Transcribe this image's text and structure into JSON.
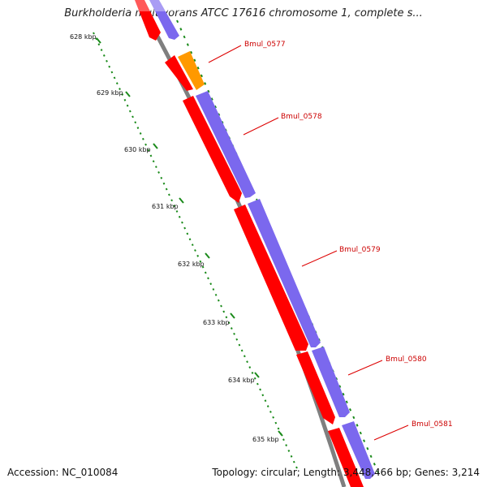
{
  "header": {
    "title": "Burkholderia multivorans ATCC 17616 chromosome 1, complete s..."
  },
  "footer": {
    "accession": "Accession: NC_010084",
    "summary": "Topology: circular; Length: 3,448,466 bp; Genes: 3,214"
  },
  "map": {
    "ticks": [
      {
        "label": "628 kbp"
      },
      {
        "label": "629 kbp"
      },
      {
        "label": "630 kbp"
      },
      {
        "label": "631 kbp"
      },
      {
        "label": "632 kbp"
      },
      {
        "label": "633 kbp"
      },
      {
        "label": "634 kbp"
      },
      {
        "label": "635 kbp"
      }
    ],
    "genes": [
      {
        "label": "Bmul_0577"
      },
      {
        "label": "Bmul_0578"
      },
      {
        "label": "Bmul_0579"
      },
      {
        "label": "Bmul_0580"
      },
      {
        "label": "Bmul_0581"
      }
    ],
    "colors": {
      "backbone": "#808080",
      "cds_strand": "#ff0000",
      "gene_strand": "#7b68ee",
      "highlight": "#ff9900",
      "tick": "#1a8a1a",
      "label_line": "#dd0000"
    }
  }
}
